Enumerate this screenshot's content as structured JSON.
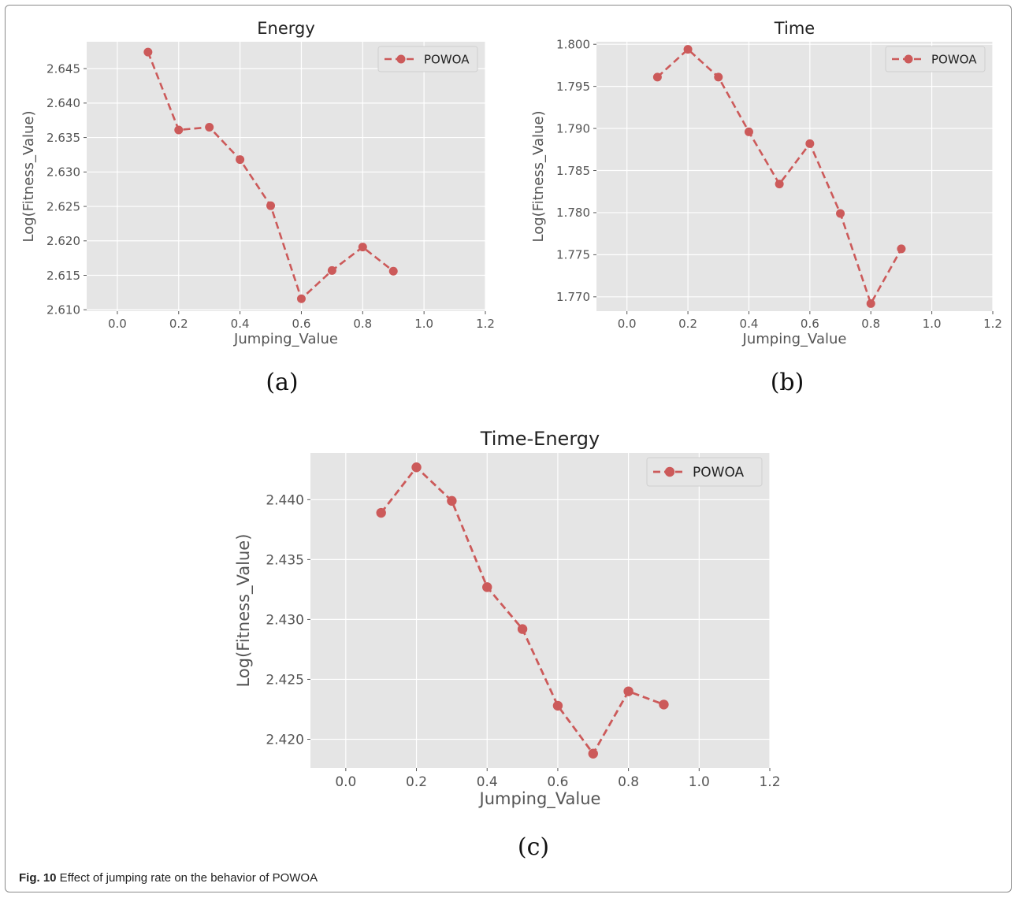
{
  "charts": [
    {
      "chart_data": {
        "type": "line",
        "title": "Energy",
        "xlabel": "Jumping_Value",
        "ylabel": "Log(Fitness_Value)",
        "xlim": [
          -0.1,
          1.2
        ],
        "ylim": [
          2.6098,
          2.6489
        ],
        "xticks": [
          0.0,
          0.2,
          0.4,
          0.6,
          0.8,
          1.0,
          1.2
        ],
        "xtick_labels": [
          "0.0",
          "0.2",
          "0.4",
          "0.6",
          "0.8",
          "1.0",
          "1.2"
        ],
        "yticks": [
          2.61,
          2.615,
          2.62,
          2.625,
          2.63,
          2.635,
          2.64,
          2.645
        ],
        "ytick_labels": [
          "2.610",
          "2.615",
          "2.620",
          "2.625",
          "2.630",
          "2.635",
          "2.640",
          "2.645"
        ],
        "grid": true,
        "legend_position": "upper right",
        "series": [
          {
            "name": "POWOA",
            "color": "#cc5a5a",
            "x": [
              0.1,
              0.2,
              0.3,
              0.4,
              0.5,
              0.6,
              0.7,
              0.8,
              0.9
            ],
            "y": [
              2.6474,
              2.6361,
              2.6365,
              2.6318,
              2.6251,
              2.6116,
              2.6157,
              2.6191,
              2.6156
            ]
          }
        ]
      },
      "sublabel": "(a)"
    },
    {
      "chart_data": {
        "type": "line",
        "title": "Time",
        "xlabel": "Jumping_Value",
        "ylabel": "Log(Fitness_Value)",
        "xlim": [
          -0.1,
          1.2
        ],
        "ylim": [
          1.7683,
          1.8003
        ],
        "xticks": [
          0.0,
          0.2,
          0.4,
          0.6,
          0.8,
          1.0,
          1.2
        ],
        "xtick_labels": [
          "0.0",
          "0.2",
          "0.4",
          "0.6",
          "0.8",
          "1.0",
          "1.2"
        ],
        "yticks": [
          1.77,
          1.775,
          1.78,
          1.785,
          1.79,
          1.795,
          1.8
        ],
        "ytick_labels": [
          "1.770",
          "1.775",
          "1.780",
          "1.785",
          "1.790",
          "1.795",
          "1.800"
        ],
        "grid": true,
        "legend_position": "upper right",
        "series": [
          {
            "name": "POWOA",
            "color": "#cc5a5a",
            "x": [
              0.1,
              0.2,
              0.3,
              0.4,
              0.5,
              0.6,
              0.7,
              0.8,
              0.9
            ],
            "y": [
              1.7961,
              1.7994,
              1.7961,
              1.7896,
              1.7834,
              1.7882,
              1.7799,
              1.7692,
              1.7757
            ]
          }
        ]
      },
      "sublabel": "(b)"
    },
    {
      "chart_data": {
        "type": "line",
        "title": "Time-Energy",
        "xlabel": "Jumping_Value",
        "ylabel": "Log(Fitness_Value)",
        "xlim": [
          -0.1,
          1.2
        ],
        "ylim": [
          2.4176,
          2.4439
        ],
        "xticks": [
          0.0,
          0.2,
          0.4,
          0.6,
          0.8,
          1.0,
          1.2
        ],
        "xtick_labels": [
          "0.0",
          "0.2",
          "0.4",
          "0.6",
          "0.8",
          "1.0",
          "1.2"
        ],
        "yticks": [
          2.42,
          2.425,
          2.43,
          2.435,
          2.44
        ],
        "ytick_labels": [
          "2.420",
          "2.425",
          "2.430",
          "2.435",
          "2.440"
        ],
        "grid": true,
        "legend_position": "upper right",
        "series": [
          {
            "name": "POWOA",
            "color": "#cc5a5a",
            "x": [
              0.1,
              0.2,
              0.3,
              0.4,
              0.5,
              0.6,
              0.7,
              0.8,
              0.9
            ],
            "y": [
              2.4389,
              2.4427,
              2.4399,
              2.4327,
              2.4292,
              2.4228,
              2.4188,
              2.424,
              2.4229
            ]
          }
        ]
      },
      "sublabel": "(c)"
    }
  ],
  "caption": {
    "prefix": "Fig. 10",
    "text": " Effect of jumping rate on the behavior of POWOA"
  },
  "colors": {
    "plot_background": "#e5e5e5",
    "grid": "#ffffff",
    "tick_text": "#555555",
    "series": "#cc5a5a"
  }
}
